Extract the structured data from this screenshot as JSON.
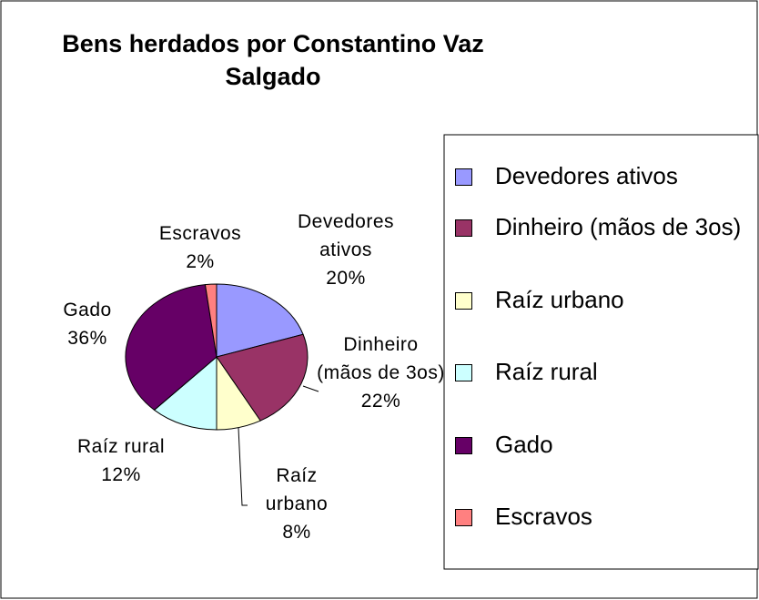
{
  "chart_data": {
    "type": "pie",
    "title": "Bens herdados por Constantino Vaz Salgado",
    "categories": [
      "Devedores ativos",
      "Dinheiro (mãos de 3os)",
      "Raíz urbano",
      "Raíz rural",
      "Gado",
      "Escravos"
    ],
    "values": [
      20,
      22,
      8,
      12,
      36,
      2
    ],
    "value_labels": [
      "20%",
      "22%",
      "8%",
      "12%",
      "36%",
      "2%"
    ],
    "colors": [
      "#9999ff",
      "#993366",
      "#ffffcc",
      "#ccffff",
      "#660066",
      "#ff8080"
    ],
    "legend": "right"
  }
}
